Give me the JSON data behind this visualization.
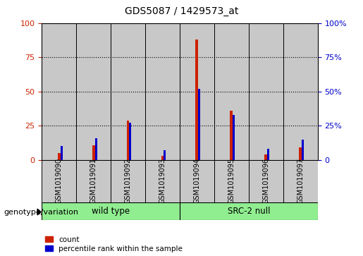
{
  "title": "GDS5087 / 1429573_at",
  "samples": [
    "GSM1019090",
    "GSM1019091",
    "GSM1019092",
    "GSM1019093",
    "GSM1019094",
    "GSM1019095",
    "GSM1019096",
    "GSM1019097"
  ],
  "counts": [
    5,
    11,
    29,
    3,
    88,
    36,
    4,
    9
  ],
  "percentiles": [
    10,
    16,
    27,
    7,
    52,
    33,
    8,
    15
  ],
  "groups": [
    {
      "label": "wild type",
      "start": 0,
      "end": 4,
      "color": "#90ee90"
    },
    {
      "label": "SRC-2 null",
      "start": 4,
      "end": 8,
      "color": "#90ee90"
    }
  ],
  "group_label": "genotype/variation",
  "ylim": [
    0,
    100
  ],
  "yticks": [
    0,
    25,
    50,
    75,
    100
  ],
  "bar_color": "#cc2200",
  "percentile_color": "#0000cc",
  "bg_color": "#c8c8c8",
  "plot_bg": "#ffffff",
  "legend_count_label": "count",
  "legend_percentile_label": "percentile rank within the sample",
  "bar_width": 0.08,
  "percentile_bar_width": 0.06
}
